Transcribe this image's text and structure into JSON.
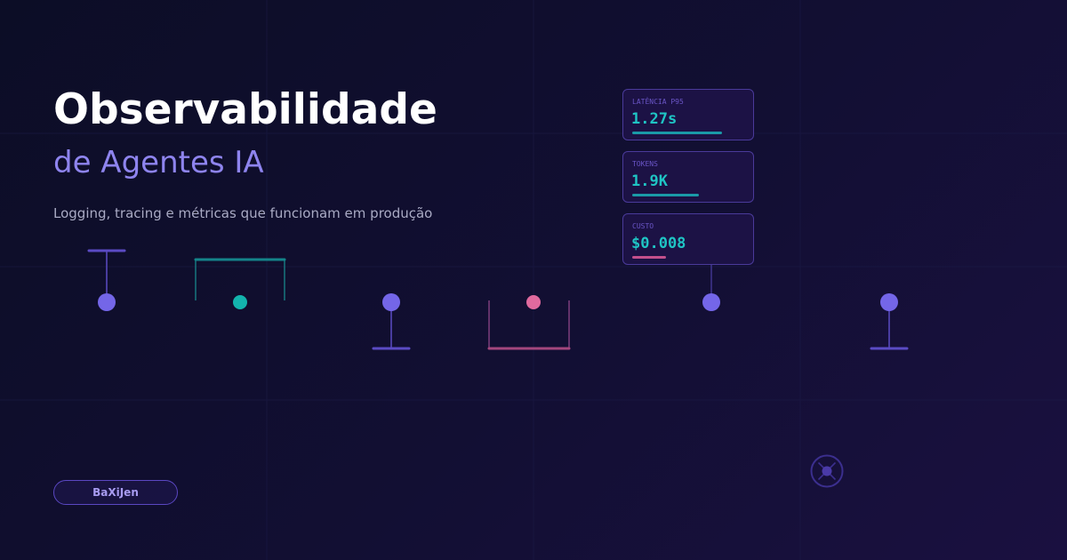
{
  "hero": {
    "title": "Observabilidade",
    "subtitle": "de Agentes IA",
    "tagline": "Logging, tracing e métricas que funcionam em produção"
  },
  "metrics": [
    {
      "label": "LATÊNCIA P95",
      "value": "1.27s",
      "level": 0.67,
      "bar_color": "#1a9aa8"
    },
    {
      "label": "TOKENS",
      "value": "1.9K",
      "level": 0.5,
      "bar_color": "#1a9aa8"
    },
    {
      "label": "CUSTO",
      "value": "$0.008",
      "level": 0.25,
      "bar_color": "#c2508c"
    }
  ],
  "brand": {
    "name": "BaXiJen"
  },
  "icons": {
    "decor": "crosshair-circle-icon"
  },
  "colors": {
    "background": "#110f30",
    "accent_violet": "#7466e8",
    "accent_teal": "#13b3ad",
    "accent_pink": "#e06a9e",
    "metric_value": "#1fc4c4"
  }
}
